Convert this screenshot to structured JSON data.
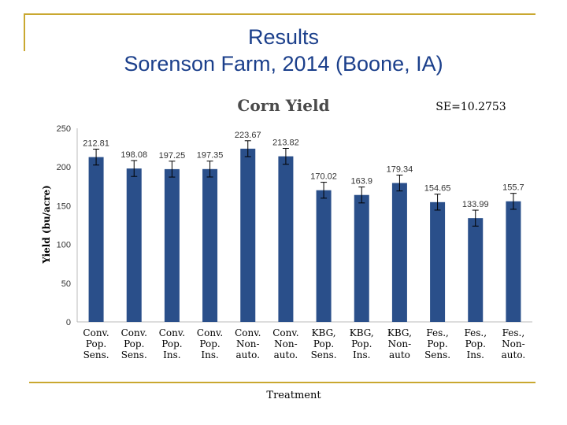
{
  "slide": {
    "title_line1": "Results",
    "title_line2": "Sorenson Farm, 2014 (Boone, IA)"
  },
  "colors": {
    "bar": "#2a4f8a",
    "frame": "#c9a830",
    "title": "#1b3f8b"
  },
  "chart_data": {
    "type": "bar",
    "title": "Corn Yield",
    "annotation": "SE=10.2753",
    "xlabel": "Treatment",
    "ylabel": "Yield (bu/acre)",
    "ylim": [
      0,
      250
    ],
    "yticks": [
      0,
      50,
      100,
      150,
      200,
      250
    ],
    "grid": false,
    "error_bars": true,
    "categories": [
      "Conv.\nPop.\nSens.",
      "Conv.\nPop.\nSens.",
      "Conv.\nPop.\nIns.",
      "Conv.\nPop.\nIns.",
      "Conv.\nNon-\nauto.",
      "Conv.\nNon-\nauto.",
      "KBG,\nPop.\nSens.",
      "KBG,\nPop.\nIns.",
      "KBG,\nNon-\nauto",
      "Fes.,\nPop.\nSens.",
      "Fes.,\nPop.\nIns.",
      "Fes.,\nNon-\nauto."
    ],
    "values": [
      212.81,
      198.08,
      197.25,
      197.35,
      223.67,
      213.82,
      170.02,
      163.9,
      179.34,
      154.65,
      133.99,
      155.7
    ],
    "value_labels": [
      "212.81",
      "198.08",
      "197.25",
      "197.35",
      "223.67",
      "213.82",
      "170.02",
      "163.9",
      "179.34",
      "154.65",
      "133.99",
      "155.7"
    ],
    "error": 10.2753
  }
}
